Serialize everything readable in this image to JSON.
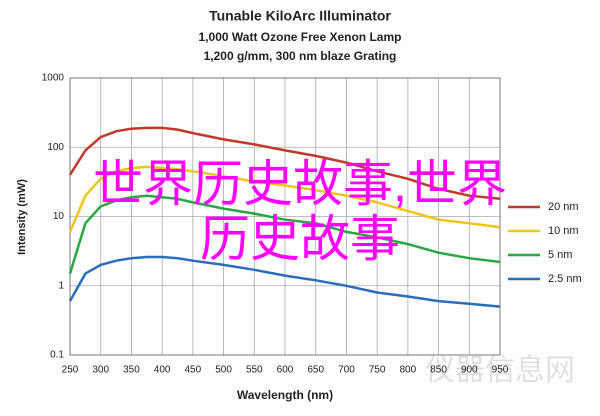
{
  "chart_data": {
    "type": "line",
    "title": "Tunable KiloArc Illuminator",
    "subtitles": [
      "1,000 Watt Ozone Free Xenon Lamp",
      "1,200 g/mm, 300 nm blaze Grating"
    ],
    "x_label": "Wavelength (nm)",
    "y_label": "Intensity (mW)",
    "x": [
      250,
      275,
      300,
      325,
      350,
      375,
      400,
      425,
      450,
      500,
      550,
      600,
      650,
      700,
      750,
      800,
      850,
      900,
      950
    ],
    "series": [
      {
        "name": "20 nm",
        "color": "#c0392b",
        "values": [
          40,
          90,
          140,
          170,
          185,
          190,
          190,
          180,
          160,
          130,
          110,
          90,
          75,
          60,
          45,
          35,
          25,
          20,
          18
        ]
      },
      {
        "name": "10 nm",
        "color": "#f0c419",
        "values": [
          6,
          20,
          35,
          45,
          50,
          52,
          50,
          48,
          45,
          38,
          32,
          28,
          24,
          20,
          16,
          12,
          9,
          8,
          7
        ]
      },
      {
        "name": "5 nm",
        "color": "#27a844",
        "values": [
          1.5,
          8,
          14,
          17,
          19,
          20,
          19,
          18,
          16,
          13,
          11,
          9,
          8,
          6,
          5,
          4,
          3,
          2.5,
          2.2
        ]
      },
      {
        "name": "2.5 nm",
        "color": "#2a6ebb",
        "values": [
          0.6,
          1.5,
          2.0,
          2.3,
          2.5,
          2.6,
          2.6,
          2.5,
          2.3,
          2.0,
          1.7,
          1.4,
          1.2,
          1.0,
          0.8,
          0.7,
          0.6,
          0.55,
          0.5
        ]
      }
    ],
    "xlim": [
      250,
      950
    ],
    "xticks": [
      250,
      300,
      350,
      400,
      450,
      500,
      550,
      600,
      650,
      700,
      750,
      800,
      850,
      900,
      950
    ],
    "ylim": [
      0.1,
      1000
    ],
    "yticks": [
      0.1,
      1,
      10,
      100,
      1000
    ],
    "log_y": true,
    "grid": true,
    "legend": "right",
    "overlay_text": [
      "世界历史故事,世界",
      "历史故事"
    ],
    "overlay_color": "#ff00ff",
    "watermark": "仪器信息网"
  }
}
